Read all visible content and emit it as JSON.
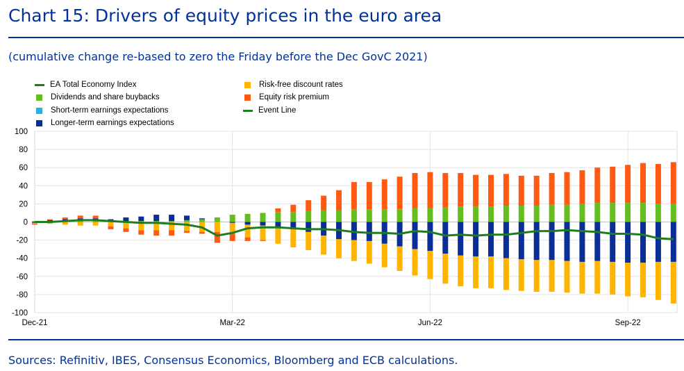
{
  "title": "Chart 15: Drivers of equity prices in the euro area",
  "subtitle": "(cumulative change re-based to zero the Friday before the Dec GovC 2021)",
  "source": "Sources: Refinitiv, IBES, Consensus Economics, Bloomberg and ECB calculations.",
  "colors": {
    "total": "#1e7d1e",
    "dividends": "#64be1e",
    "short_term": "#22b2e6",
    "longer_term": "#0a2d96",
    "riskfree": "#ffb400",
    "erp": "#ff5a14",
    "event": "#1e7d1e"
  },
  "legend": [
    {
      "key": "total",
      "label": "EA Total Economy Index",
      "kind": "line"
    },
    {
      "key": "dividends",
      "label": "Dividends and share buybacks",
      "kind": "box"
    },
    {
      "key": "short_term",
      "label": "Short-term earnings expectations",
      "kind": "box"
    },
    {
      "key": "longer_term",
      "label": "Longer-term earnings expectations",
      "kind": "box"
    },
    {
      "key": "riskfree",
      "label": "Risk-free discount rates",
      "kind": "box"
    },
    {
      "key": "erp",
      "label": "Equity risk premium",
      "kind": "box"
    },
    {
      "key": "event",
      "label": "Event Line",
      "kind": "line"
    }
  ],
  "chart_data": {
    "type": "bar",
    "stacked": true,
    "ylim": [
      -100,
      100
    ],
    "yticks": [
      100,
      80,
      60,
      40,
      20,
      0,
      -20,
      -40,
      -60,
      -80,
      -100
    ],
    "x_tick_labels": [
      "Dec-21",
      "Mar-22",
      "Jun-22",
      "Sep-22"
    ],
    "x_tick_positions": [
      0,
      13,
      26,
      39
    ],
    "n_weeks": 43,
    "grid": true,
    "series": [
      {
        "key": "dividends",
        "name": "Dividends and share buybacks",
        "values": [
          1,
          1,
          1,
          1,
          1,
          1,
          1,
          1,
          1,
          1,
          2,
          3,
          5,
          8,
          9,
          10,
          11,
          11,
          12,
          13,
          13,
          14,
          14,
          14,
          14,
          15,
          15,
          16,
          17,
          17,
          17,
          18,
          18,
          18,
          19,
          19,
          20,
          21,
          21,
          21,
          21,
          20,
          20
        ]
      },
      {
        "key": "short_term",
        "name": "Short-term earnings expectations",
        "values": [
          0,
          0,
          0,
          0,
          0,
          0,
          0,
          0,
          0,
          0,
          0,
          0,
          0,
          0,
          0,
          0,
          0,
          0,
          0,
          0,
          0,
          0,
          0,
          0,
          0,
          0,
          0,
          0,
          0,
          0,
          0,
          0,
          0,
          0,
          0,
          0,
          0,
          0,
          0,
          0,
          0,
          0,
          0
        ]
      },
      {
        "key": "longer_term",
        "name": "Longer-term earnings expectations",
        "values": [
          -1,
          1,
          2,
          3,
          3,
          2,
          4,
          5,
          7,
          7,
          5,
          1,
          0,
          -1,
          -3,
          -4,
          -6,
          -8,
          -11,
          -15,
          -19,
          -20,
          -21,
          -24,
          -27,
          -30,
          -32,
          -35,
          -37,
          -38,
          -38,
          -40,
          -41,
          -42,
          -42,
          -43,
          -44,
          -43,
          -44,
          -45,
          -45,
          -44,
          -44
        ]
      },
      {
        "key": "riskfree",
        "name": "Risk-free discount rates",
        "values": [
          -1,
          -2,
          -3,
          -4,
          -4,
          -5,
          -7,
          -9,
          -9,
          -9,
          -10,
          -11,
          -11,
          -12,
          -14,
          -16,
          -18,
          -20,
          -20,
          -21,
          -21,
          -23,
          -25,
          -26,
          -27,
          -29,
          -31,
          -33,
          -34,
          -35,
          -35,
          -35,
          -35,
          -35,
          -35,
          -35,
          -35,
          -36,
          -36,
          -37,
          -38,
          -42,
          -46
        ]
      },
      {
        "key": "erp",
        "name": "Equity risk premium",
        "values": [
          -1,
          1,
          2,
          3,
          3,
          -3,
          -4,
          -5,
          -6,
          -6,
          -2,
          -2,
          -12,
          -8,
          -4,
          -1,
          4,
          8,
          12,
          16,
          22,
          30,
          30,
          33,
          36,
          39,
          40,
          38,
          37,
          35,
          35,
          35,
          33,
          33,
          35,
          36,
          37,
          39,
          40,
          42,
          44,
          44,
          46
        ]
      },
      {
        "key": "total",
        "name": "EA Total Economy Index",
        "kind": "line",
        "values": [
          0,
          0,
          1,
          2,
          2,
          1,
          0,
          -1,
          -1,
          -2,
          -3,
          -6,
          -15,
          -12,
          -7,
          -6,
          -6,
          -7,
          -8,
          -8,
          -9,
          -11,
          -12,
          -12,
          -13,
          -10,
          -11,
          -15,
          -14,
          -15,
          -14,
          -14,
          -12,
          -10,
          -10,
          -9,
          -10,
          -11,
          -13,
          -13,
          -14,
          -18,
          -19
        ]
      }
    ]
  }
}
